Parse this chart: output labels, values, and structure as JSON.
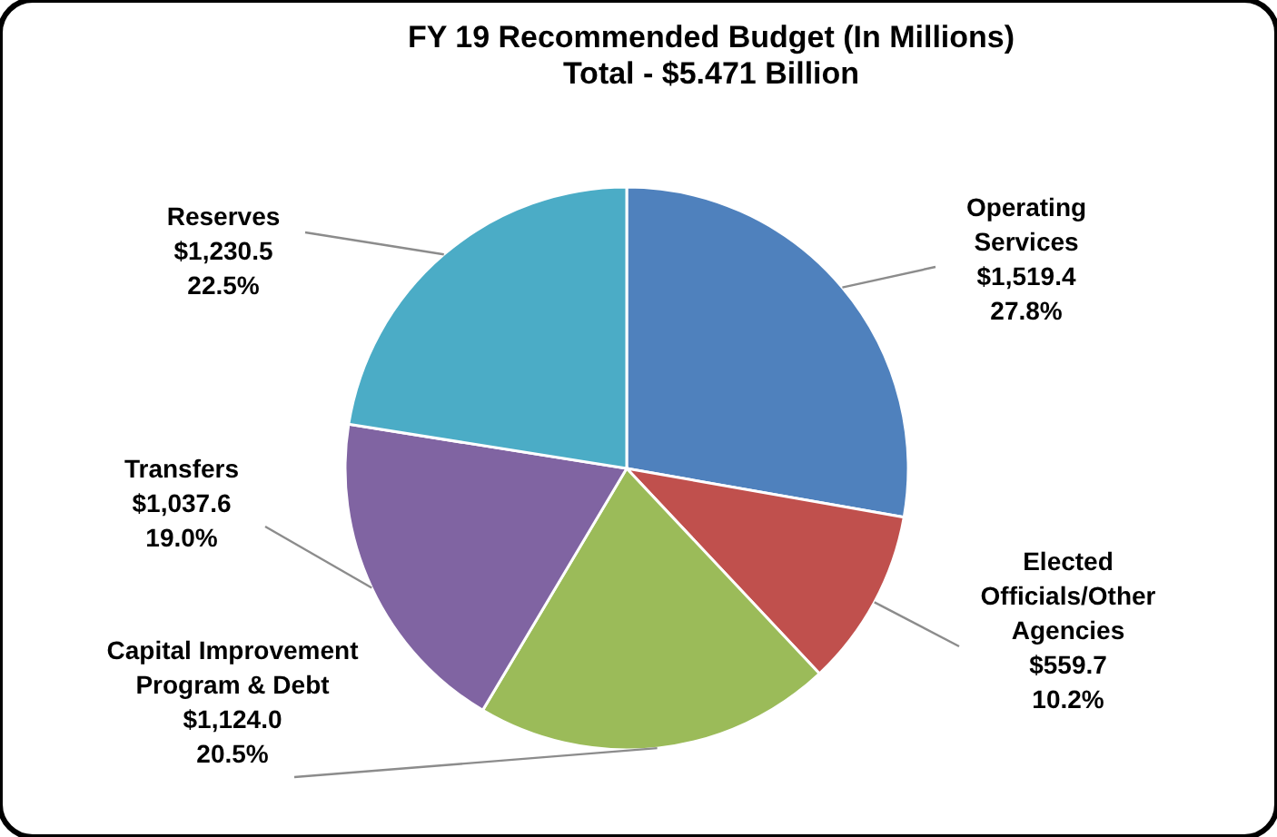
{
  "chart_data": {
    "type": "pie",
    "title": "FY 19 Recommended Budget (In Millions)",
    "subtitle": "Total - $5.471 Billion",
    "categories": [
      "Operating Services",
      "Elected Officials/Other Agencies",
      "Capital Improvement Program & Debt",
      "Transfers",
      "Reserves"
    ],
    "values": [
      1519.4,
      559.7,
      1124.0,
      1037.6,
      1230.5
    ],
    "colors": [
      "#4f81bd",
      "#c0504d",
      "#9bbb59",
      "#8064a2",
      "#4bacc6"
    ],
    "value_labels": [
      "$1,519.4\n27.8%",
      "$559.7\n10.2%",
      "$1,124.0\n20.5%",
      "$1,037.6\n19.0%",
      "$1,230.5\n22.5%"
    ],
    "legend": false
  }
}
